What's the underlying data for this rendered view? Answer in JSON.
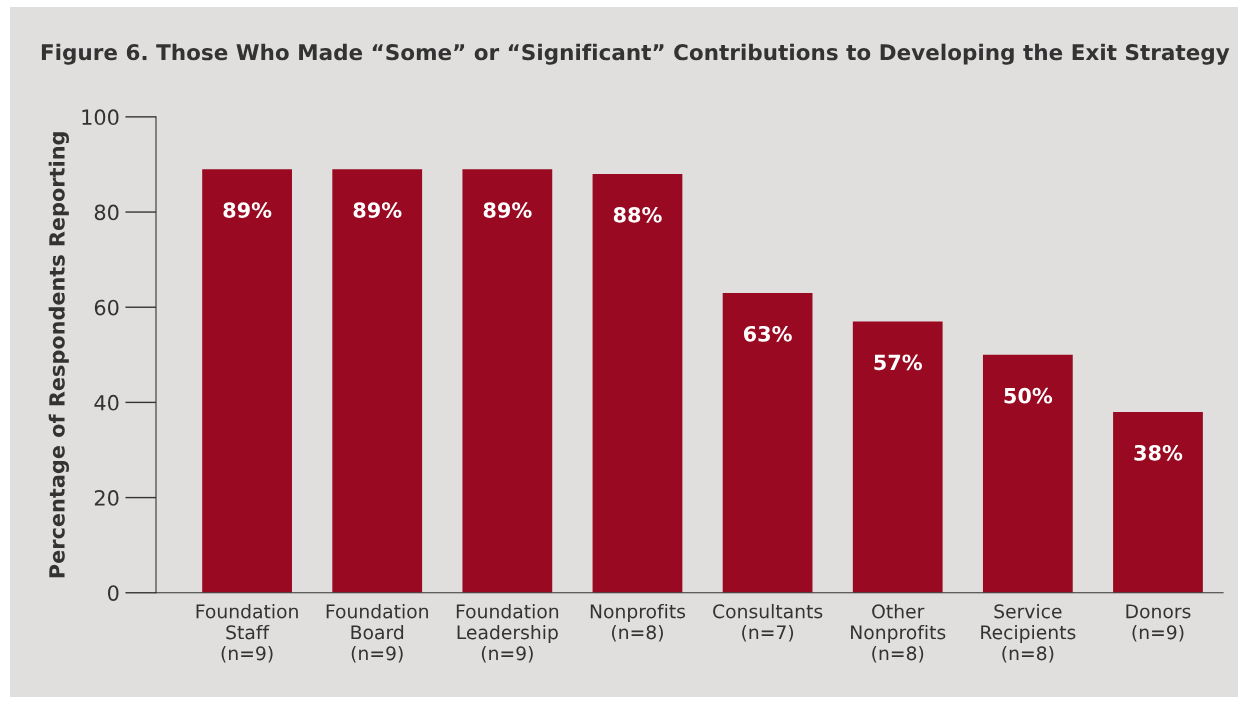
{
  "chart_data": {
    "type": "bar",
    "title": "Figure 6. Those Who Made “Some” or “Significant” Contributions to Developing the Exit Strategy",
    "ylabel": "Percentage of Respondents Reporting",
    "categories": [
      "Foundation\nStaff\n(n=9)",
      "Foundation\nBoard\n(n=9)",
      "Foundation\nLeadership\n(n=9)",
      "Nonprofits\n(n=8)",
      "Consultants\n(n=7)",
      "Other\nNonprofits\n(n=8)",
      "Service\nRecipients\n(n=8)",
      "Donors\n(n=9)"
    ],
    "values": [
      89,
      89,
      89,
      88,
      63,
      57,
      50,
      38
    ],
    "value_labels": [
      "89%",
      "89%",
      "89%",
      "88%",
      "63%",
      "57%",
      "50%",
      "38%"
    ],
    "color": "#990a22",
    "ylim": [
      0,
      100
    ],
    "yticks": [
      0,
      20,
      40,
      60,
      80,
      100
    ],
    "grid": false,
    "legend": false
  }
}
